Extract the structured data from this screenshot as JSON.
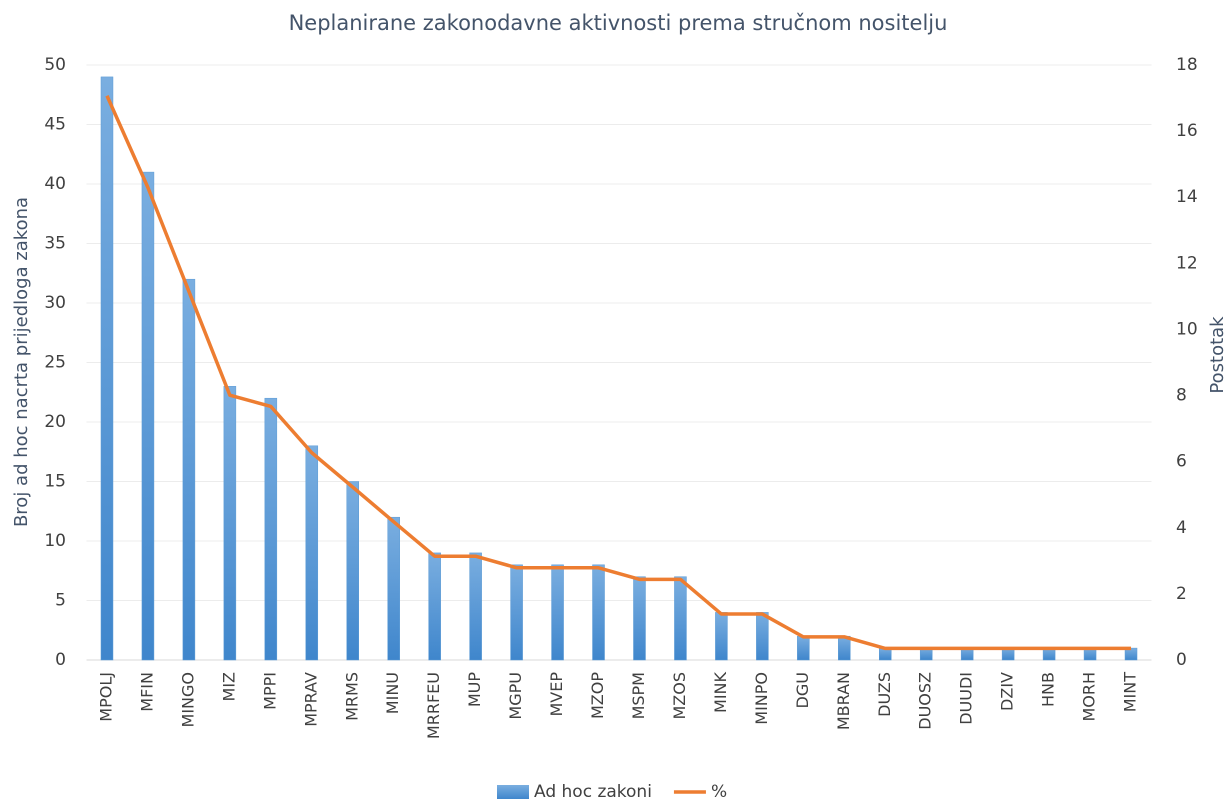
{
  "chart_data": {
    "type": "bar",
    "title": "Neplanirane zakonodavne aktivnosti prema stručnom nositelju",
    "y_label": "Broj ad hoc nacrta prijedloga zakona",
    "y2_label": "Postotak",
    "categories": [
      "MPOLJ",
      "MFIN",
      "MINGO",
      "MIZ",
      "MPPI",
      "MPRAV",
      "MRMS",
      "MINU",
      "MRRFEU",
      "MUP",
      "MGPU",
      "MVEP",
      "MZOP",
      "MSPM",
      "MZOS",
      "MINK",
      "MINPO",
      "DGU",
      "MBRAN",
      "DUZS",
      "DUOSZ",
      "DUUDI",
      "DZIV",
      "HNB",
      "MORH",
      "MINT"
    ],
    "series": [
      {
        "name": "Ad hoc zakoni",
        "type": "bar",
        "color": "#5b9bd5",
        "values": [
          49,
          41,
          32,
          23,
          22,
          18,
          15,
          12,
          9,
          9,
          8,
          8,
          8,
          7,
          7,
          4,
          4,
          2,
          2,
          1,
          1,
          1,
          1,
          1,
          1,
          1
        ]
      },
      {
        "name": "%",
        "type": "line",
        "axis": "y2",
        "color": "#ed7d31",
        "values": [
          17.07,
          14.29,
          11.15,
          8.01,
          7.67,
          6.27,
          5.23,
          4.18,
          3.14,
          3.14,
          2.79,
          2.79,
          2.79,
          2.44,
          2.44,
          1.39,
          1.39,
          0.7,
          0.7,
          0.35,
          0.35,
          0.35,
          0.35,
          0.35,
          0.35,
          0.35
        ]
      }
    ],
    "ylim": [
      0,
      50
    ],
    "yticks": [
      0,
      5,
      10,
      15,
      20,
      25,
      30,
      35,
      40,
      45,
      50
    ],
    "y2lim": [
      0,
      18
    ],
    "y2ticks": [
      0,
      2,
      4,
      6,
      8,
      10,
      12,
      14,
      16,
      18
    ],
    "grid": true,
    "legend": "bottom"
  }
}
